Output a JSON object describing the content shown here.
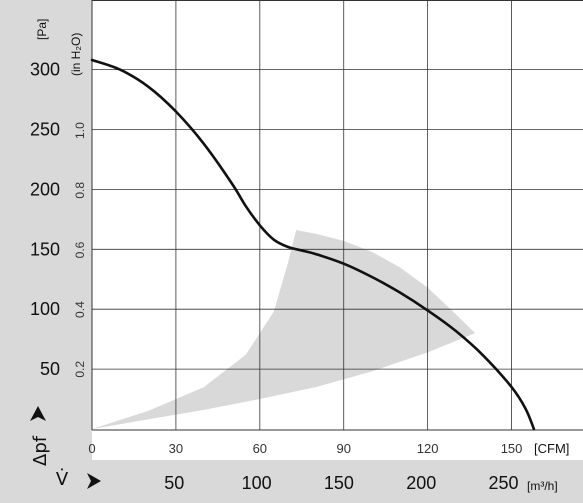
{
  "chart_data": {
    "type": "line",
    "colors": {
      "curve": "#111111",
      "operating_range": "#d9d9d9",
      "left_panel": "#d9d9d9",
      "bottom_panel": "#d9d9d9",
      "grid": "#333333"
    },
    "y_axis_pa": {
      "unit": "[Pa]",
      "ticks": [
        "50",
        "100",
        "150",
        "200",
        "250",
        "300"
      ],
      "range": [
        0,
        330
      ]
    },
    "y_axis_inh2o": {
      "unit": "(in H₂O)",
      "ticks": [
        "0.2",
        "0.4",
        "0.6",
        "0.8",
        "1.0"
      ]
    },
    "x_axis_cfm": {
      "unit": "[CFM]",
      "ticks": [
        "0",
        "30",
        "60",
        "90",
        "120",
        "150"
      ],
      "range": [
        0,
        175
      ]
    },
    "x_axis_m3h": {
      "unit": "[m³/h]",
      "ticks": [
        "50",
        "100",
        "150",
        "200",
        "250"
      ]
    },
    "y_symbol": "Δpf",
    "x_symbol": "V̇",
    "grid": true,
    "series": [
      {
        "x_cfm": [
          0,
          10,
          20,
          30,
          40,
          50,
          55,
          60,
          65,
          70,
          75,
          80,
          90,
          100,
          110,
          120,
          130,
          140,
          150,
          155,
          158
        ],
        "y_pa": [
          308,
          300,
          286,
          265,
          238,
          205,
          186,
          170,
          158,
          152,
          149,
          146,
          138,
          127,
          114,
          99,
          82,
          61,
          35,
          17,
          0
        ]
      }
    ],
    "operating_range": {
      "upper_x_cfm": [
        73,
        80,
        90,
        100,
        110,
        120,
        130,
        137
      ],
      "upper_y_pa": [
        166,
        163,
        157,
        148,
        135,
        118,
        96,
        80
      ],
      "lower_x_cfm": [
        137,
        120,
        100,
        80,
        60,
        40,
        20,
        0
      ],
      "lower_y_pa": [
        80,
        64,
        48,
        35,
        25,
        16,
        8,
        0
      ],
      "left_x_cfm": [
        0,
        20,
        40,
        55,
        65,
        70,
        73
      ],
      "left_y_pa": [
        0,
        15,
        35,
        62,
        98,
        138,
        166
      ]
    }
  }
}
